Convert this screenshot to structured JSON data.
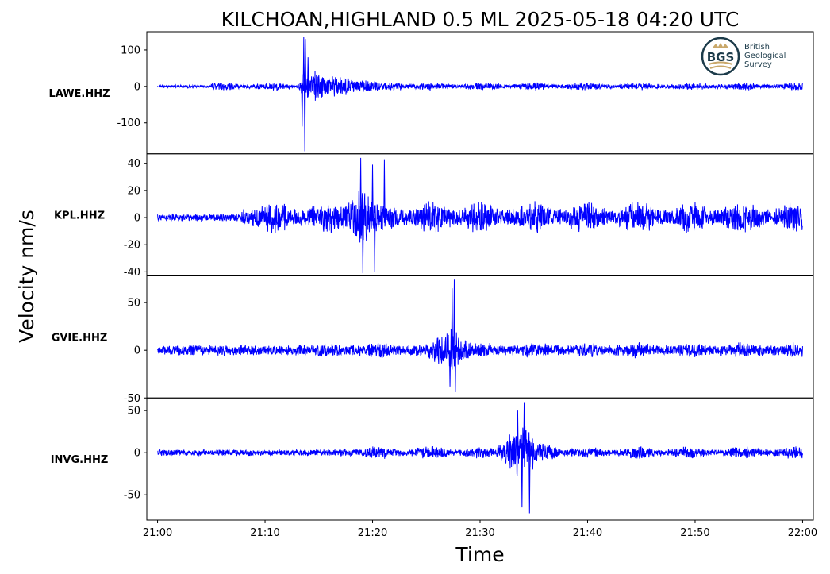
{
  "chart_data": {
    "type": "line",
    "title": "KILCHOAN,HIGHLAND 0.5 ML   2025-05-18 04:20 UTC",
    "xlabel": "Time",
    "ylabel": "Velocity nm/s",
    "x_ticks": [
      "21:00",
      "21:10",
      "21:20",
      "21:30",
      "21:40",
      "21:50",
      "22:00"
    ],
    "x_range_minutes": [
      -1.0,
      61.0
    ],
    "line_color": "#0000ff",
    "grid": false,
    "logo": {
      "badge": "BGS",
      "lines": [
        "British",
        "Geological",
        "Survey"
      ]
    },
    "panels": [
      {
        "station": "LAWE.HHZ",
        "ylim": [
          -185,
          150
        ],
        "yticks": [
          100,
          0,
          -100
        ],
        "ytick_labels": [
          "100",
          "0",
          "-100"
        ],
        "background_amplitude": 4,
        "onset_minute": 5,
        "onset_amplitude": 12,
        "event_segments": [
          {
            "start": 13.0,
            "peak": 13.7,
            "end": 30.0,
            "amp": 55
          }
        ],
        "spikes": [
          {
            "t": 13.6,
            "v": 135
          },
          {
            "t": 13.75,
            "v": 130
          },
          {
            "t": 13.7,
            "v": -178
          },
          {
            "t": 13.45,
            "v": -110
          },
          {
            "t": 14.0,
            "v": 80
          }
        ]
      },
      {
        "station": "KPL.HHZ",
        "ylim": [
          -43,
          47
        ],
        "yticks": [
          40,
          20,
          0,
          -20,
          -40
        ],
        "ytick_labels": [
          "40",
          "20",
          "0",
          "-20",
          "-40"
        ],
        "background_amplitude": 3,
        "onset_minute": 7.8,
        "onset_amplitude": 13,
        "event_segments": [
          {
            "start": 16.5,
            "peak": 18.8,
            "end": 26.0,
            "amp": 24
          }
        ],
        "spikes": [
          {
            "t": 18.9,
            "v": 44
          },
          {
            "t": 19.1,
            "v": -41
          },
          {
            "t": 21.1,
            "v": 43
          },
          {
            "t": 20.2,
            "v": -40
          },
          {
            "t": 20.0,
            "v": 39
          }
        ]
      },
      {
        "station": "GVIE.HHZ",
        "ylim": [
          -50,
          78
        ],
        "yticks": [
          50,
          0,
          -50
        ],
        "ytick_labels": [
          "50",
          "0",
          "-50"
        ],
        "background_amplitude": 6,
        "onset_minute": 11.8,
        "onset_amplitude": 9,
        "event_segments": [
          {
            "start": 24.0,
            "peak": 27.3,
            "end": 33.5,
            "amp": 25
          }
        ],
        "spikes": [
          {
            "t": 27.6,
            "v": 74
          },
          {
            "t": 27.7,
            "v": -44
          },
          {
            "t": 27.4,
            "v": 65
          },
          {
            "t": 27.2,
            "v": -38
          }
        ]
      },
      {
        "station": "INVG.HHZ",
        "ylim": [
          -80,
          65
        ],
        "yticks": [
          50,
          0,
          -50
        ],
        "ytick_labels": [
          "50",
          "0",
          "-50"
        ],
        "background_amplitude": 4,
        "onset_minute": 17,
        "onset_amplitude": 8,
        "event_segments": [
          {
            "start": 31.0,
            "peak": 34.0,
            "end": 39.5,
            "amp": 40
          }
        ],
        "spikes": [
          {
            "t": 34.1,
            "v": 60
          },
          {
            "t": 34.6,
            "v": -72
          },
          {
            "t": 33.9,
            "v": -65
          },
          {
            "t": 33.5,
            "v": 50
          }
        ]
      }
    ]
  }
}
